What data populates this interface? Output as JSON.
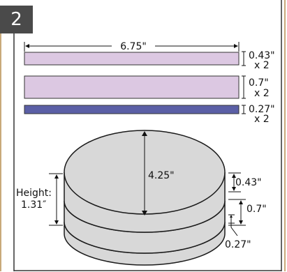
{
  "step_number": "2",
  "colors": {
    "strip_light": "#dcc8e2",
    "strip_dark": "#5b5fa6",
    "disc_fill": "#d8d8d8",
    "outline": "#1a1a1a",
    "frame_border": "#c9a97a"
  },
  "strips": {
    "length_label": "6.75\"",
    "items": [
      {
        "thickness": "0.43\"",
        "qty": "x 2"
      },
      {
        "thickness": "0.7\"",
        "qty": "x 2"
      },
      {
        "thickness": "0.27\"",
        "qty": "x 2"
      }
    ]
  },
  "stack": {
    "diameter_label": "4.25\"",
    "height_label_1": "Height:",
    "height_label_2": "1.31″",
    "layer_labels": [
      "0.43\"",
      "0.7\"",
      "0.27\""
    ]
  }
}
